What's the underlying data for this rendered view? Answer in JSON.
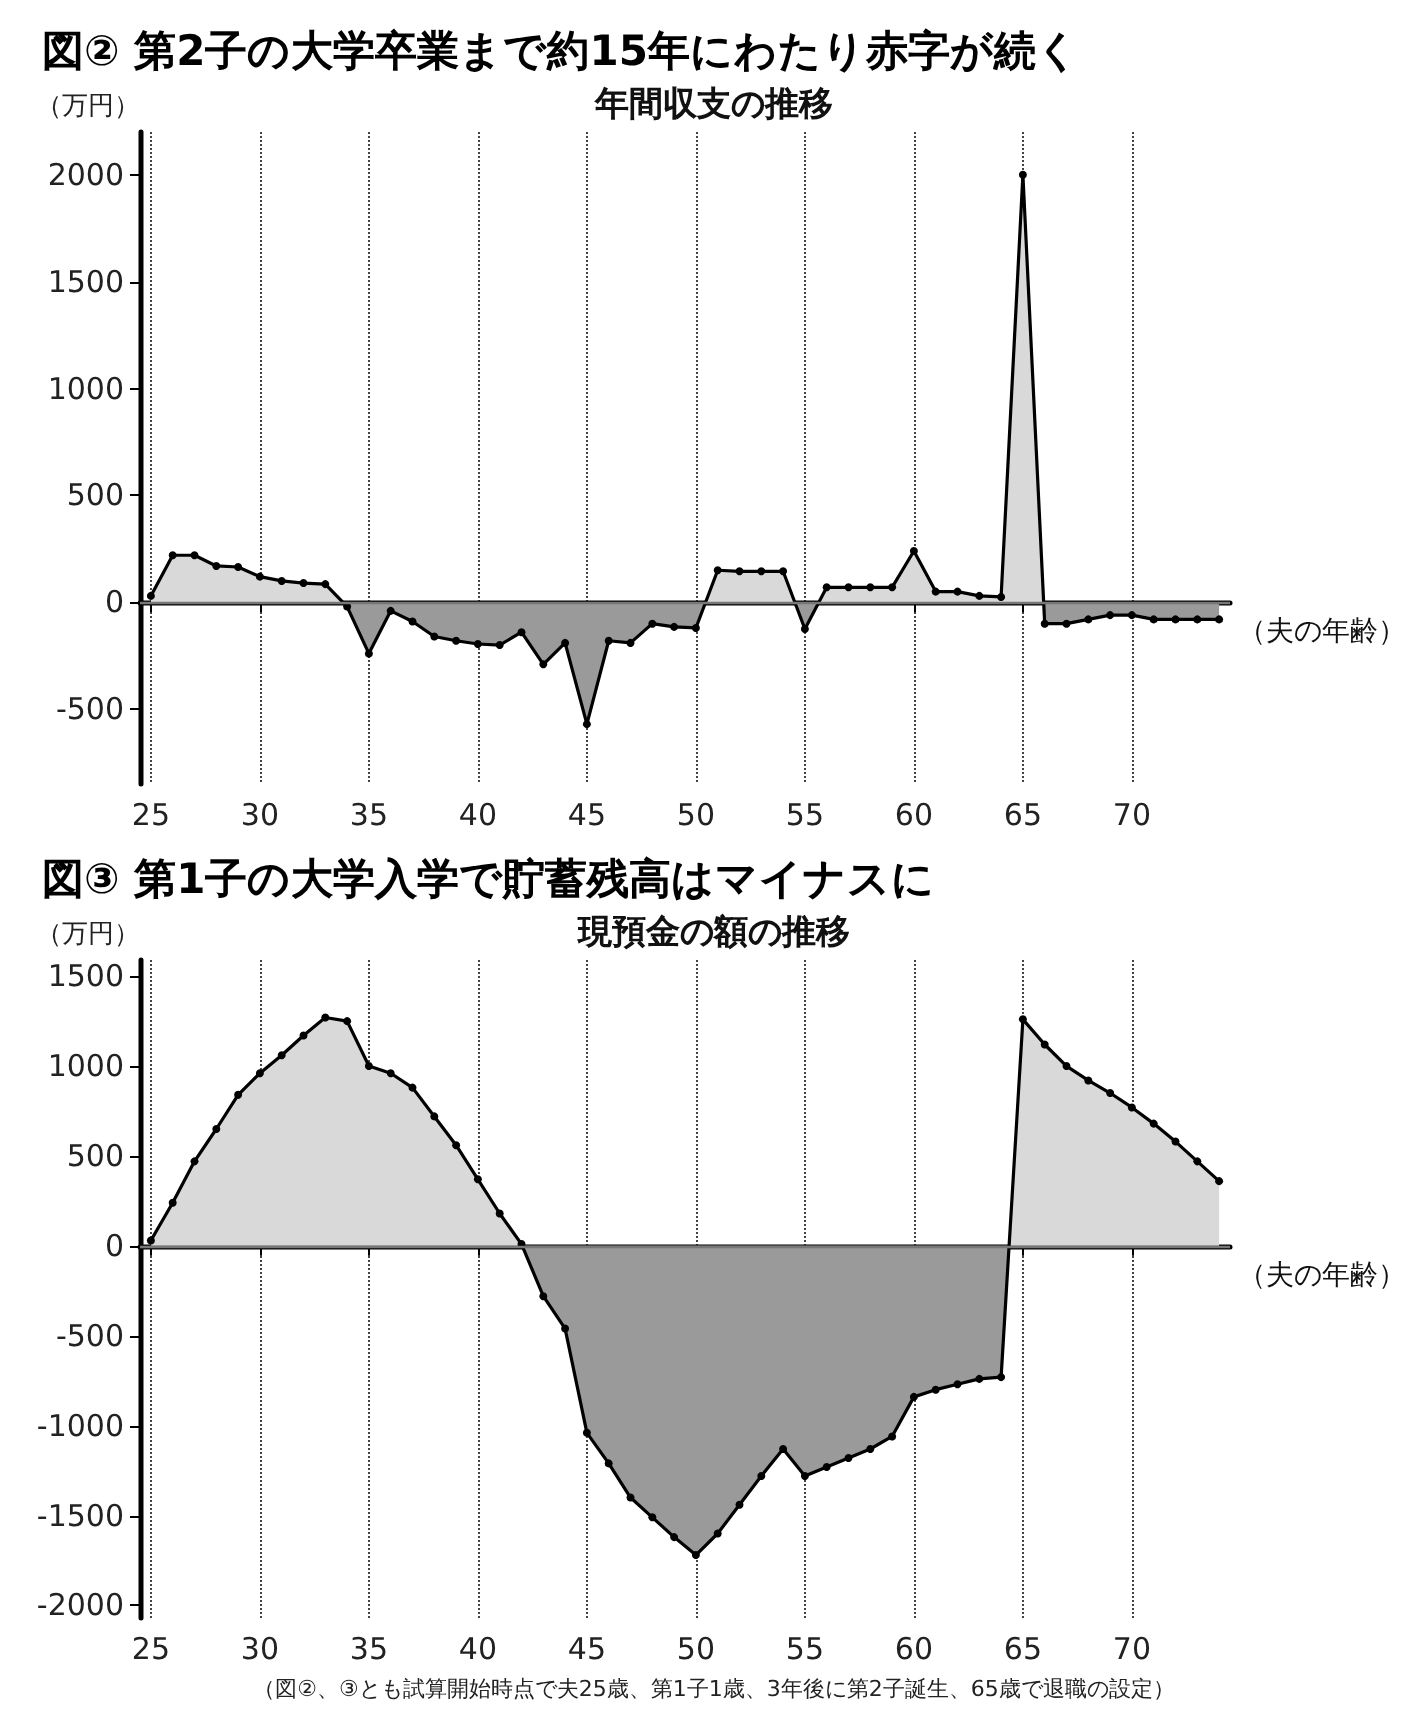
{
  "chart_data": [
    {
      "type": "area",
      "title": "図② 第2子の大学卒業まで約15年にわたり赤字が続く",
      "subtitle": "年間収支の推移",
      "ylabel": "（万円）",
      "xlabel": "（夫の年齢）",
      "x": [
        25,
        26,
        27,
        28,
        29,
        30,
        31,
        32,
        33,
        34,
        35,
        36,
        37,
        38,
        39,
        40,
        41,
        42,
        43,
        44,
        45,
        46,
        47,
        48,
        49,
        50,
        51,
        52,
        53,
        54,
        55,
        56,
        57,
        58,
        59,
        60,
        61,
        62,
        63,
        64,
        65,
        66,
        67,
        68,
        69,
        70,
        71,
        72,
        73,
        74
      ],
      "series": [
        {
          "color": "#000000",
          "values": [
            30,
            220,
            220,
            170,
            165,
            120,
            100,
            90,
            85,
            -20,
            -240,
            -40,
            -90,
            -160,
            -180,
            -195,
            -200,
            -140,
            -290,
            -190,
            -570,
            -180,
            -190,
            -100,
            -115,
            -120,
            150,
            145,
            145,
            145,
            -125,
            70,
            70,
            70,
            70,
            240,
            50,
            50,
            30,
            25,
            2000,
            -100,
            -100,
            -80,
            -60,
            -60,
            -80,
            -80,
            -80,
            -80
          ]
        }
      ],
      "xlim": [
        24.5,
        74.5
      ],
      "xticks": [
        25,
        30,
        35,
        40,
        45,
        50,
        55,
        60,
        65,
        70
      ],
      "ylim": [
        -850,
        2200
      ],
      "yticks": [
        -500,
        0,
        500,
        1000,
        1500,
        2000
      ],
      "ref_lines": [
        {
          "axis": "y",
          "value": 0,
          "color": "#777777"
        }
      ],
      "grid": "x",
      "marker": "circle",
      "line_style": "solid"
    },
    {
      "type": "area",
      "title": "図③ 第1子の大学入学で貯蓄残高はマイナスに",
      "subtitle": "現預金の額の推移",
      "ylabel": "（万円）",
      "xlabel": "（夫の年齢）",
      "x": [
        25,
        26,
        27,
        28,
        29,
        30,
        31,
        32,
        33,
        34,
        35,
        36,
        37,
        38,
        39,
        40,
        41,
        42,
        43,
        44,
        45,
        46,
        47,
        48,
        49,
        50,
        51,
        52,
        53,
        54,
        55,
        56,
        57,
        58,
        59,
        60,
        61,
        62,
        63,
        64,
        65,
        66,
        67,
        68,
        69,
        70,
        71,
        72,
        73,
        74
      ],
      "series": [
        {
          "color": "#000000",
          "values": [
            30,
            240,
            470,
            650,
            840,
            960,
            1060,
            1170,
            1270,
            1250,
            1000,
            960,
            880,
            720,
            560,
            370,
            180,
            10,
            -280,
            -460,
            -1040,
            -1210,
            -1400,
            -1510,
            -1620,
            -1720,
            -1600,
            -1440,
            -1280,
            -1130,
            -1280,
            -1230,
            -1180,
            -1130,
            -1060,
            -840,
            -800,
            -770,
            -740,
            -730,
            1260,
            1120,
            1000,
            920,
            850,
            770,
            680,
            580,
            470,
            360
          ]
        }
      ],
      "xlim": [
        24.5,
        74.5
      ],
      "xticks": [
        25,
        30,
        35,
        40,
        45,
        50,
        55,
        60,
        65,
        70
      ],
      "ylim": [
        -2070,
        1590
      ],
      "yticks": [
        -2000,
        -1500,
        -1000,
        -500,
        0,
        500,
        1000,
        1500
      ],
      "ref_lines": [
        {
          "axis": "y",
          "value": 0,
          "color": "#777777"
        }
      ],
      "grid": "x",
      "marker": "circle",
      "line_style": "solid",
      "annotations": [
        "（図②、③とも試算開始時点で夫25歳、第1子1歳、3年後に第2子誕生、65歳で退職の設定）"
      ]
    }
  ]
}
